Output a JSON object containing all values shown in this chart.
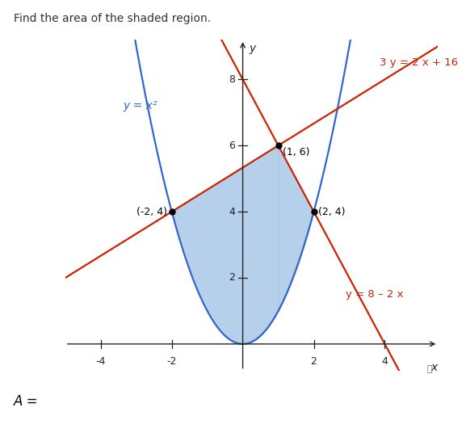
{
  "title": "Find the area of the shaded region.",
  "xlabel": "x",
  "ylabel": "y",
  "xlim": [
    -5.0,
    5.5
  ],
  "ylim": [
    -0.8,
    9.2
  ],
  "xticks": [
    -4,
    -2,
    2,
    4
  ],
  "yticks": [
    2,
    4,
    6,
    8
  ],
  "parabola_color": "#3366cc",
  "line1_color": "#cc2200",
  "line2_color": "#cc2200",
  "shade_color": "#aac8e8",
  "shade_alpha": 0.85,
  "points": [
    [
      -2,
      4
    ],
    [
      1,
      6
    ],
    [
      2,
      4
    ]
  ],
  "point_labels": [
    "(-2, 4)",
    "(1, 6)",
    "(2, 4)"
  ],
  "eq_parabola": "y = x²",
  "eq_line1": "3 y = 2 x + 16",
  "eq_line2": "y = 8 – 2 x",
  "answer_label": "A =",
  "background": "#ffffff",
  "title_color": "#333333",
  "axis_color": "#222222",
  "label_color": "#222222"
}
